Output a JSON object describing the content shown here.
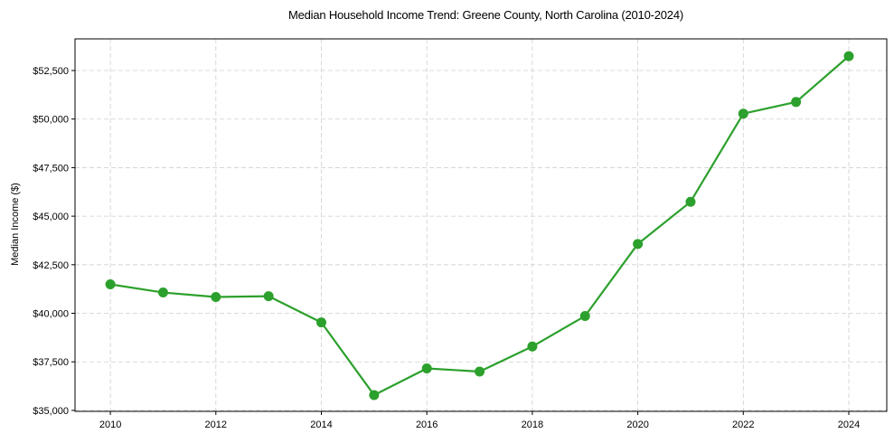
{
  "chart_data": {
    "type": "line",
    "title": "Median Household Income Trend: Greene County, North Carolina (2010-2024)",
    "xlabel": "",
    "ylabel": "Median Income ($)",
    "x": [
      2010,
      2011,
      2012,
      2013,
      2014,
      2015,
      2016,
      2017,
      2018,
      2019,
      2020,
      2021,
      2022,
      2023,
      2024
    ],
    "series": [
      {
        "name": "Median Household Income",
        "color": "#2ca02c",
        "values": [
          41490,
          41070,
          40840,
          40880,
          39530,
          35790,
          37160,
          37000,
          38290,
          39860,
          43570,
          45740,
          50280,
          50880,
          53240
        ]
      }
    ],
    "xticks": [
      2010,
      2012,
      2014,
      2016,
      2018,
      2020,
      2022,
      2024
    ],
    "xtick_labels": [
      "2010",
      "2012",
      "2014",
      "2016",
      "2018",
      "2020",
      "2022",
      "2024"
    ],
    "yticks": [
      35000,
      37500,
      40000,
      42500,
      45000,
      47500,
      50000,
      52500
    ],
    "ytick_labels": [
      "$35,000",
      "$37,500",
      "$40,000",
      "$42,500",
      "$45,000",
      "$47,500",
      "$50,000",
      "$52,500"
    ],
    "xlim": [
      2009.33,
      2024.72
    ],
    "ylim": [
      34950,
      54130
    ],
    "grid": true,
    "legend": null,
    "marker": "circle"
  }
}
